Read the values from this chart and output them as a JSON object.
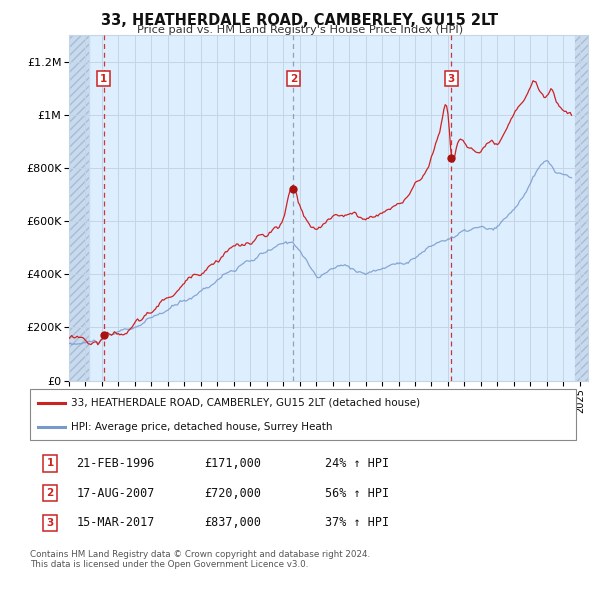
{
  "title": "33, HEATHERDALE ROAD, CAMBERLEY, GU15 2LT",
  "subtitle": "Price paid vs. HM Land Registry's House Price Index (HPI)",
  "bg_color": "#ddeeff",
  "red_line_color": "#cc2222",
  "blue_line_color": "#7799cc",
  "ylim": [
    0,
    1300000
  ],
  "xlim_start": 1994.0,
  "xlim_end": 2025.5,
  "yticks": [
    0,
    200000,
    400000,
    600000,
    800000,
    1000000,
    1200000
  ],
  "ytick_labels": [
    "£0",
    "£200K",
    "£400K",
    "£600K",
    "£800K",
    "£1M",
    "£1.2M"
  ],
  "xtick_years": [
    1994,
    1995,
    1996,
    1997,
    1998,
    1999,
    2000,
    2001,
    2002,
    2003,
    2004,
    2005,
    2006,
    2007,
    2008,
    2009,
    2010,
    2011,
    2012,
    2013,
    2014,
    2015,
    2016,
    2017,
    2018,
    2019,
    2020,
    2021,
    2022,
    2023,
    2024,
    2025
  ],
  "sale_dates": [
    1996.12,
    2007.62,
    2017.21
  ],
  "sale_prices": [
    171000,
    720000,
    837000
  ],
  "sale_labels": [
    "1",
    "2",
    "3"
  ],
  "sale_line_styles": [
    "red_dashed",
    "gray_dashed",
    "red_dashed"
  ],
  "legend_red": "33, HEATHERDALE ROAD, CAMBERLEY, GU15 2LT (detached house)",
  "legend_blue": "HPI: Average price, detached house, Surrey Heath",
  "table_rows": [
    [
      "1",
      "21-FEB-1996",
      "£171,000",
      "24% ↑ HPI"
    ],
    [
      "2",
      "17-AUG-2007",
      "£720,000",
      "56% ↑ HPI"
    ],
    [
      "3",
      "15-MAR-2017",
      "£837,000",
      "37% ↑ HPI"
    ]
  ],
  "footer": "Contains HM Land Registry data © Crown copyright and database right 2024.\nThis data is licensed under the Open Government Licence v3.0.",
  "hatch_left_end": 1995.2,
  "hatch_right_start": 2024.7
}
